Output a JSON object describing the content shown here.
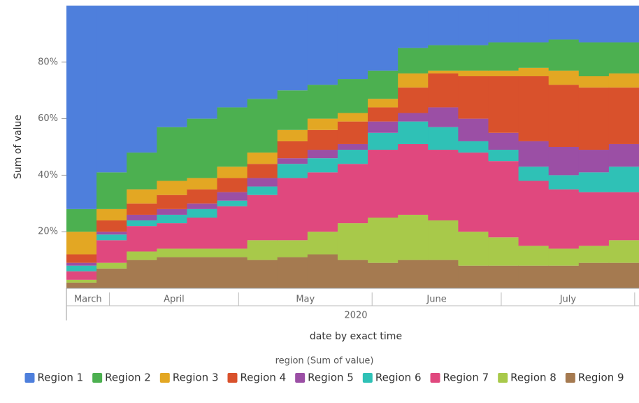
{
  "chart_data": {
    "type": "stacked-step-area",
    "x_title": "date by exact time",
    "y_title": "Sum of value",
    "legend_title": "region (Sum of value)",
    "year_label": "2020",
    "months": [
      {
        "label": "March",
        "start": "2020-03-01",
        "end": "2020-04-01"
      },
      {
        "label": "April",
        "start": "2020-04-01",
        "end": "2020-05-01"
      },
      {
        "label": "May",
        "start": "2020-05-01",
        "end": "2020-06-01"
      },
      {
        "label": "June",
        "start": "2020-06-01",
        "end": "2020-07-01"
      },
      {
        "label": "July",
        "start": "2020-07-01",
        "end": "2020-08-01"
      }
    ],
    "xlim": [
      "2020-03-22",
      "2020-08-02"
    ],
    "ylim": [
      0,
      100
    ],
    "yticks": [
      {
        "value": 20,
        "label": "20%"
      },
      {
        "value": 40,
        "label": "40%"
      },
      {
        "value": 60,
        "label": "60%"
      },
      {
        "value": 80,
        "label": "80%"
      }
    ],
    "x": [
      "2020-03-22",
      "2020-03-29",
      "2020-04-05",
      "2020-04-12",
      "2020-04-19",
      "2020-04-26",
      "2020-05-03",
      "2020-05-10",
      "2020-05-17",
      "2020-05-24",
      "2020-05-31",
      "2020-06-07",
      "2020-06-14",
      "2020-06-21",
      "2020-06-28",
      "2020-07-05",
      "2020-07-12",
      "2020-07-19",
      "2020-07-26"
    ],
    "series": [
      {
        "name": "Region 1",
        "color": "#4e7fdc",
        "values": [
          72,
          59,
          52,
          43,
          40,
          36,
          33,
          30,
          28,
          26,
          23,
          15,
          14,
          14,
          13,
          13,
          12,
          13,
          13
        ]
      },
      {
        "name": "Region 2",
        "color": "#4cb050",
        "values": [
          8,
          13,
          13,
          19,
          21,
          21,
          19,
          14,
          12,
          12,
          10,
          9,
          9,
          9,
          10,
          9,
          11,
          12,
          11
        ]
      },
      {
        "name": "Region 3",
        "color": "#e3a723",
        "values": [
          8,
          4,
          5,
          5,
          4,
          4,
          4,
          4,
          4,
          3,
          3,
          5,
          1,
          2,
          2,
          3,
          5,
          4,
          5
        ]
      },
      {
        "name": "Region 4",
        "color": "#d9512c",
        "values": [
          3,
          4,
          4,
          5,
          5,
          5,
          5,
          6,
          7,
          8,
          5,
          9,
          12,
          15,
          20,
          23,
          22,
          22,
          20
        ]
      },
      {
        "name": "Region 5",
        "color": "#9b4fa5",
        "values": [
          1,
          1,
          2,
          2,
          2,
          3,
          3,
          2,
          3,
          2,
          4,
          3,
          7,
          8,
          6,
          9,
          10,
          8,
          8
        ]
      },
      {
        "name": "Region 6",
        "color": "#2fc1b6",
        "values": [
          2,
          2,
          2,
          3,
          3,
          2,
          3,
          5,
          5,
          5,
          6,
          8,
          8,
          4,
          4,
          5,
          5,
          7,
          9
        ]
      },
      {
        "name": "Region 7",
        "color": "#e0487e",
        "values": [
          3,
          8,
          9,
          9,
          11,
          15,
          16,
          22,
          21,
          21,
          24,
          25,
          25,
          28,
          27,
          23,
          21,
          19,
          17
        ]
      },
      {
        "name": "Region 8",
        "color": "#a8c94a",
        "values": [
          1,
          2,
          3,
          3,
          3,
          3,
          7,
          6,
          8,
          13,
          16,
          16,
          14,
          12,
          10,
          7,
          6,
          6,
          8
        ]
      },
      {
        "name": "Region 9",
        "color": "#a57a50",
        "values": [
          2,
          7,
          10,
          11,
          11,
          11,
          10,
          11,
          12,
          10,
          9,
          10,
          10,
          8,
          8,
          8,
          8,
          9,
          9
        ]
      }
    ]
  }
}
